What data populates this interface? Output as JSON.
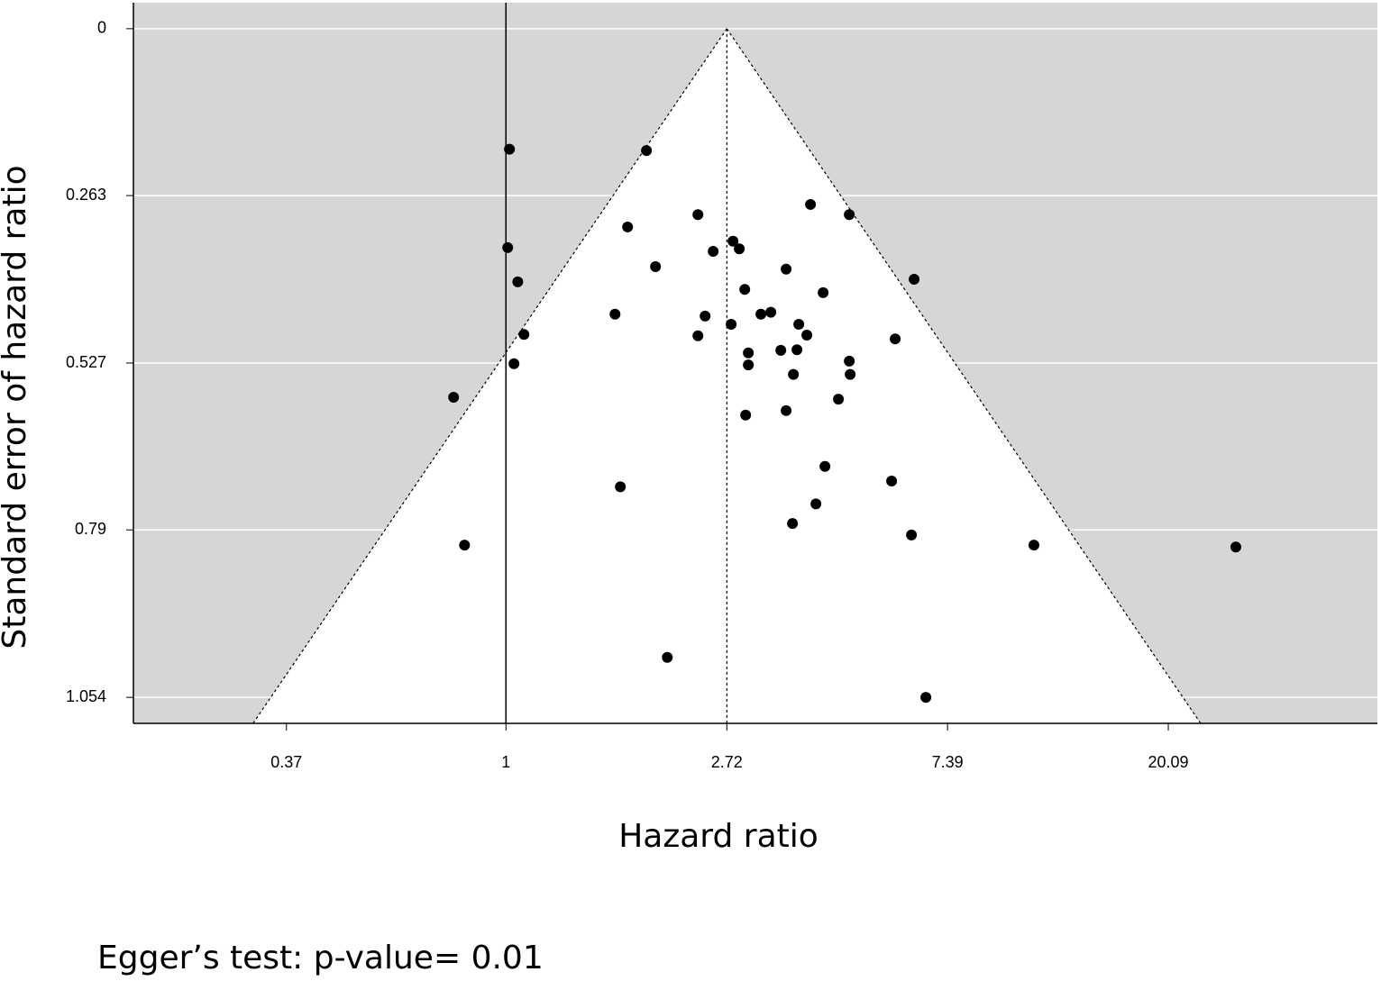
{
  "chart_data": {
    "type": "funnel",
    "x_label": "Hazard ratio",
    "y_label": "Standard error of hazard ratio",
    "annotation": "Egger’s test: p-value= 0.01",
    "x": [
      1.016,
      1.89,
      2.386,
      3.973,
      4.736,
      1.735,
      1.008,
      2.797,
      2.878,
      2.557,
      1.969,
      3.558,
      1.055,
      6.353,
      2.95,
      4.207,
      1.639,
      2.465,
      3.174,
      3.32,
      2.774,
      3.768,
      1.085,
      2.386,
      3.908,
      5.831,
      3.473,
      3.737,
      2.998,
      1.037,
      2.998,
      4.736,
      4.755,
      3.677,
      0.789,
      4.509,
      3.558,
      2.962,
      4.242,
      1.679,
      5.737,
      4.072,
      3.662,
      6.277,
      0.829,
      10.93,
      27.28,
      2.077,
      6.7
    ],
    "values": [
      0.19,
      0.192,
      0.293,
      0.277,
      0.293,
      0.3125,
      0.345,
      0.335,
      0.347,
      0.351,
      0.375,
      0.379,
      0.399,
      0.395,
      0.411,
      0.416,
      0.45,
      0.453,
      0.45,
      0.447,
      0.466,
      0.466,
      0.482,
      0.484,
      0.483,
      0.489,
      0.507,
      0.506,
      0.511,
      0.528,
      0.53,
      0.524,
      0.545,
      0.545,
      0.581,
      0.584,
      0.602,
      0.609,
      0.69,
      0.722,
      0.713,
      0.749,
      0.78,
      0.798,
      0.814,
      0.814,
      0.817,
      0.991,
      1.054
    ],
    "color": "#000000",
    "x_log": true,
    "xlim": [
      0.185,
      51.8
    ],
    "xticks": [
      0.37,
      1,
      2.72,
      7.39,
      20.09
    ],
    "ylim": [
      -0.041,
      1.095
    ],
    "y_inverted": true,
    "yticks": [
      0,
      0.263,
      0.527,
      0.79,
      1.054
    ],
    "pooled_estimate": 2.72,
    "null_line": 1,
    "funnel_z": 1.96,
    "grid": true,
    "background_color": "#d6d6d6",
    "funnel_color": "#ffffff"
  }
}
